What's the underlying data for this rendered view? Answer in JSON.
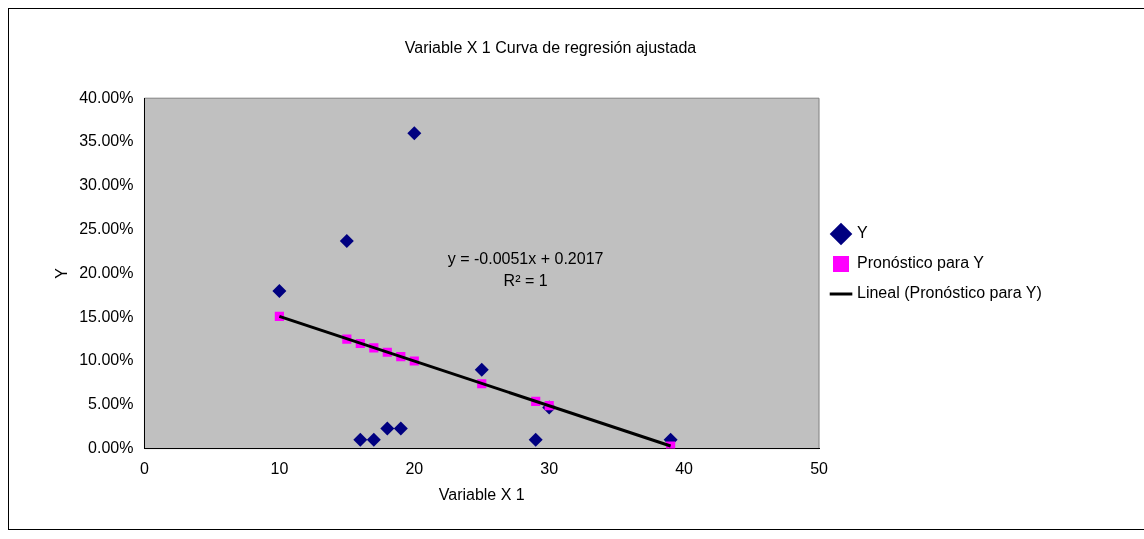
{
  "chart_data": {
    "type": "scatter",
    "title": "Variable X 1 Curva de regresión ajustada",
    "xlabel": "Variable X 1",
    "ylabel": "Y",
    "x": [
      10,
      15,
      16,
      17,
      18,
      19,
      20,
      25,
      29,
      30,
      39
    ],
    "series": [
      {
        "name": "Y",
        "color": "#000080",
        "marker": "diamond",
        "values": [
          0.18,
          0.237,
          0.01,
          0.01,
          0.023,
          0.023,
          0.36,
          0.09,
          0.01,
          0.047,
          0.01
        ]
      },
      {
        "name": "Pronóstico para Y",
        "color": "#ff00ff",
        "marker": "square",
        "values": [
          0.151,
          0.125,
          0.12,
          0.115,
          0.11,
          0.105,
          0.1,
          0.074,
          0.054,
          0.049,
          0.003
        ]
      },
      {
        "name": "Lineal (Pronóstico para Y)",
        "type": "line",
        "color": "#000000",
        "marker": "none",
        "x": [
          10,
          39
        ],
        "values": [
          0.151,
          0.003
        ]
      }
    ],
    "xlim": [
      0,
      50
    ],
    "xticks": [
      0,
      10,
      20,
      30,
      40,
      50
    ],
    "ylim": [
      0,
      0.4
    ],
    "yticks": [
      {
        "value": 0,
        "label": "0.00%"
      },
      {
        "value": 0.05,
        "label": "5.00%"
      },
      {
        "value": 0.1,
        "label": "10.00%"
      },
      {
        "value": 0.15,
        "label": "15.00%"
      },
      {
        "value": 0.2,
        "label": "20.00%"
      },
      {
        "value": 0.25,
        "label": "25.00%"
      },
      {
        "value": 0.3,
        "label": "30.00%"
      },
      {
        "value": 0.35,
        "label": "35.00%"
      },
      {
        "value": 0.4,
        "label": "40.00%"
      }
    ],
    "grid": false,
    "legend": "right",
    "annotations": [
      "y = -0.0051x + 0.2017",
      "R² = 1"
    ]
  }
}
